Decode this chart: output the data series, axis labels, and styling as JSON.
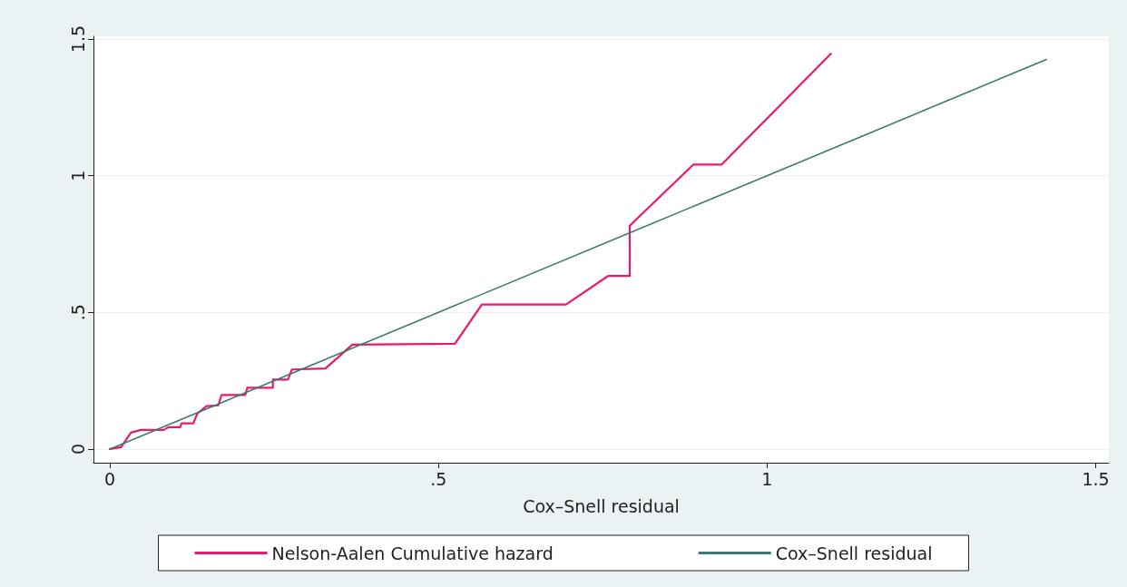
{
  "chart_data": {
    "type": "line",
    "xlabel": "Cox–Snell residual",
    "xlim": [
      -0.025,
      1.52
    ],
    "ylim": [
      -0.05,
      1.51
    ],
    "xticks": [
      0,
      {
        "value": 0.5,
        "label": ".5"
      },
      1,
      1.5
    ],
    "yticks": [
      0,
      {
        "value": 0.5,
        "label": ".5"
      },
      1,
      1.5
    ],
    "grid": "y",
    "legend": "bottom",
    "marker": "none",
    "line_style": "solid",
    "series": [
      {
        "name": "Nelson-Aalen Cumulative hazard",
        "color": "#e8196f",
        "x": [
          0,
          0.017,
          0.032,
          0.047,
          0.082,
          0.089,
          0.107,
          0.109,
          0.127,
          0.133,
          0.147,
          0.165,
          0.17,
          0.206,
          0.209,
          0.248,
          0.248,
          0.271,
          0.277,
          0.328,
          0.369,
          0.525,
          0.566,
          0.694,
          0.758,
          0.791,
          0.791,
          0.888,
          0.931,
          1.097
        ],
        "values": [
          0,
          0.007,
          0.06,
          0.07,
          0.07,
          0.08,
          0.08,
          0.094,
          0.094,
          0.13,
          0.157,
          0.16,
          0.198,
          0.198,
          0.224,
          0.224,
          0.254,
          0.254,
          0.291,
          0.295,
          0.382,
          0.385,
          0.529,
          0.529,
          0.633,
          0.633,
          0.817,
          1.041,
          1.041,
          1.446
        ]
      },
      {
        "name": "Cox–Snell residual",
        "color": "#3d7a6f",
        "x": [
          0,
          1.425
        ],
        "values": [
          0,
          1.425
        ]
      }
    ]
  }
}
